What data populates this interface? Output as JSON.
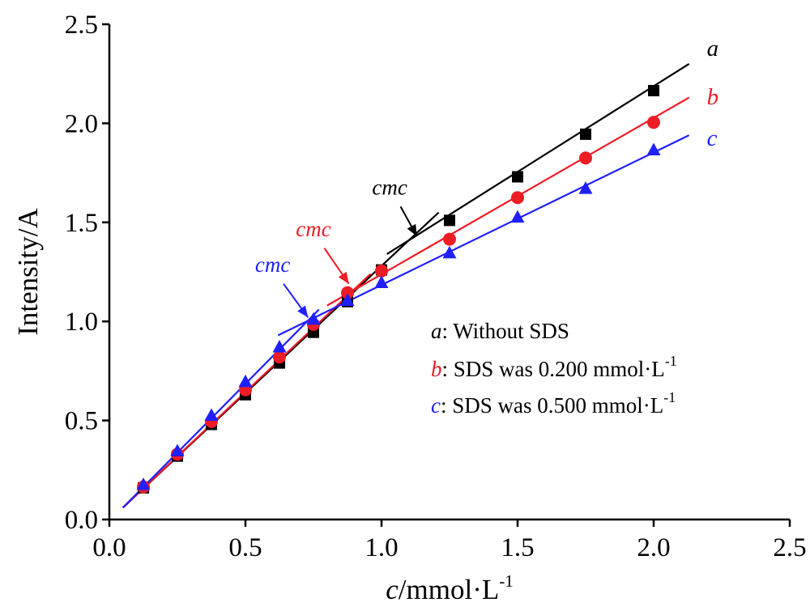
{
  "chart_data": {
    "type": "line",
    "xlabel": {
      "italic": "c",
      "rest": "/mmol·L",
      "sup": "-1"
    },
    "ylabel": "Intensity/A",
    "xlim": [
      0.0,
      2.5
    ],
    "ylim": [
      0.0,
      2.5
    ],
    "xticks": [
      "0.0",
      "0.5",
      "1.0",
      "1.5",
      "2.0",
      "2.5"
    ],
    "yticks": [
      "0.0",
      "0.5",
      "1.0",
      "1.5",
      "2.0",
      "2.5"
    ],
    "grid": false,
    "legend_position": "center-right",
    "x": [
      0.125,
      0.25,
      0.375,
      0.5,
      0.625,
      0.75,
      0.875,
      1.0,
      1.25,
      1.5,
      1.75,
      2.0
    ],
    "series": [
      {
        "label": "a",
        "legend_text": ": Without SDS",
        "legend_sup": "",
        "color": "#000000",
        "marker": "square",
        "values": [
          0.16,
          0.32,
          0.48,
          0.63,
          0.79,
          0.945,
          1.1,
          1.26,
          1.51,
          1.73,
          1.945,
          2.165
        ],
        "fit_lines": [
          [
            0.05,
            0.06,
            1.21,
            1.55
          ],
          [
            1.02,
            1.34,
            2.13,
            2.3
          ]
        ],
        "cmc_text": "cmc",
        "cmc_arrow": [
          [
            1.07,
            1.58
          ],
          [
            1.13,
            1.43
          ]
        ],
        "cmc_text_at": [
          1.03,
          1.64
        ]
      },
      {
        "label": "b",
        "legend_text": ": SDS was 0.200 mmol·L",
        "legend_sup": "-1",
        "color": "#ee1c25",
        "marker": "circle",
        "values": [
          0.165,
          0.33,
          0.495,
          0.655,
          0.82,
          0.985,
          1.145,
          1.255,
          1.415,
          1.625,
          1.825,
          2.005
        ],
        "fit_lines": [
          [
            0.05,
            0.06,
            0.96,
            1.24
          ],
          [
            0.8,
            1.08,
            2.13,
            2.13
          ]
        ],
        "cmc_text": "cmc",
        "cmc_arrow": [
          [
            0.79,
            1.37
          ],
          [
            0.88,
            1.19
          ]
        ],
        "cmc_text_at": [
          0.75,
          1.43
        ]
      },
      {
        "label": "c",
        "legend_text": ": SDS was 0.500 mmol·L",
        "legend_sup": "-1",
        "color": "#1f1fff",
        "marker": "triangle",
        "values": [
          0.175,
          0.345,
          0.525,
          0.695,
          0.87,
          1.01,
          1.105,
          1.195,
          1.345,
          1.525,
          1.67,
          1.865
        ],
        "fit_lines": [
          [
            0.05,
            0.06,
            0.77,
            1.06
          ],
          [
            0.62,
            0.93,
            2.13,
            1.94
          ]
        ],
        "cmc_text": "cmc",
        "cmc_arrow": [
          [
            0.64,
            1.19
          ],
          [
            0.73,
            1.02
          ]
        ],
        "cmc_text_at": [
          0.6,
          1.25
        ]
      }
    ]
  }
}
